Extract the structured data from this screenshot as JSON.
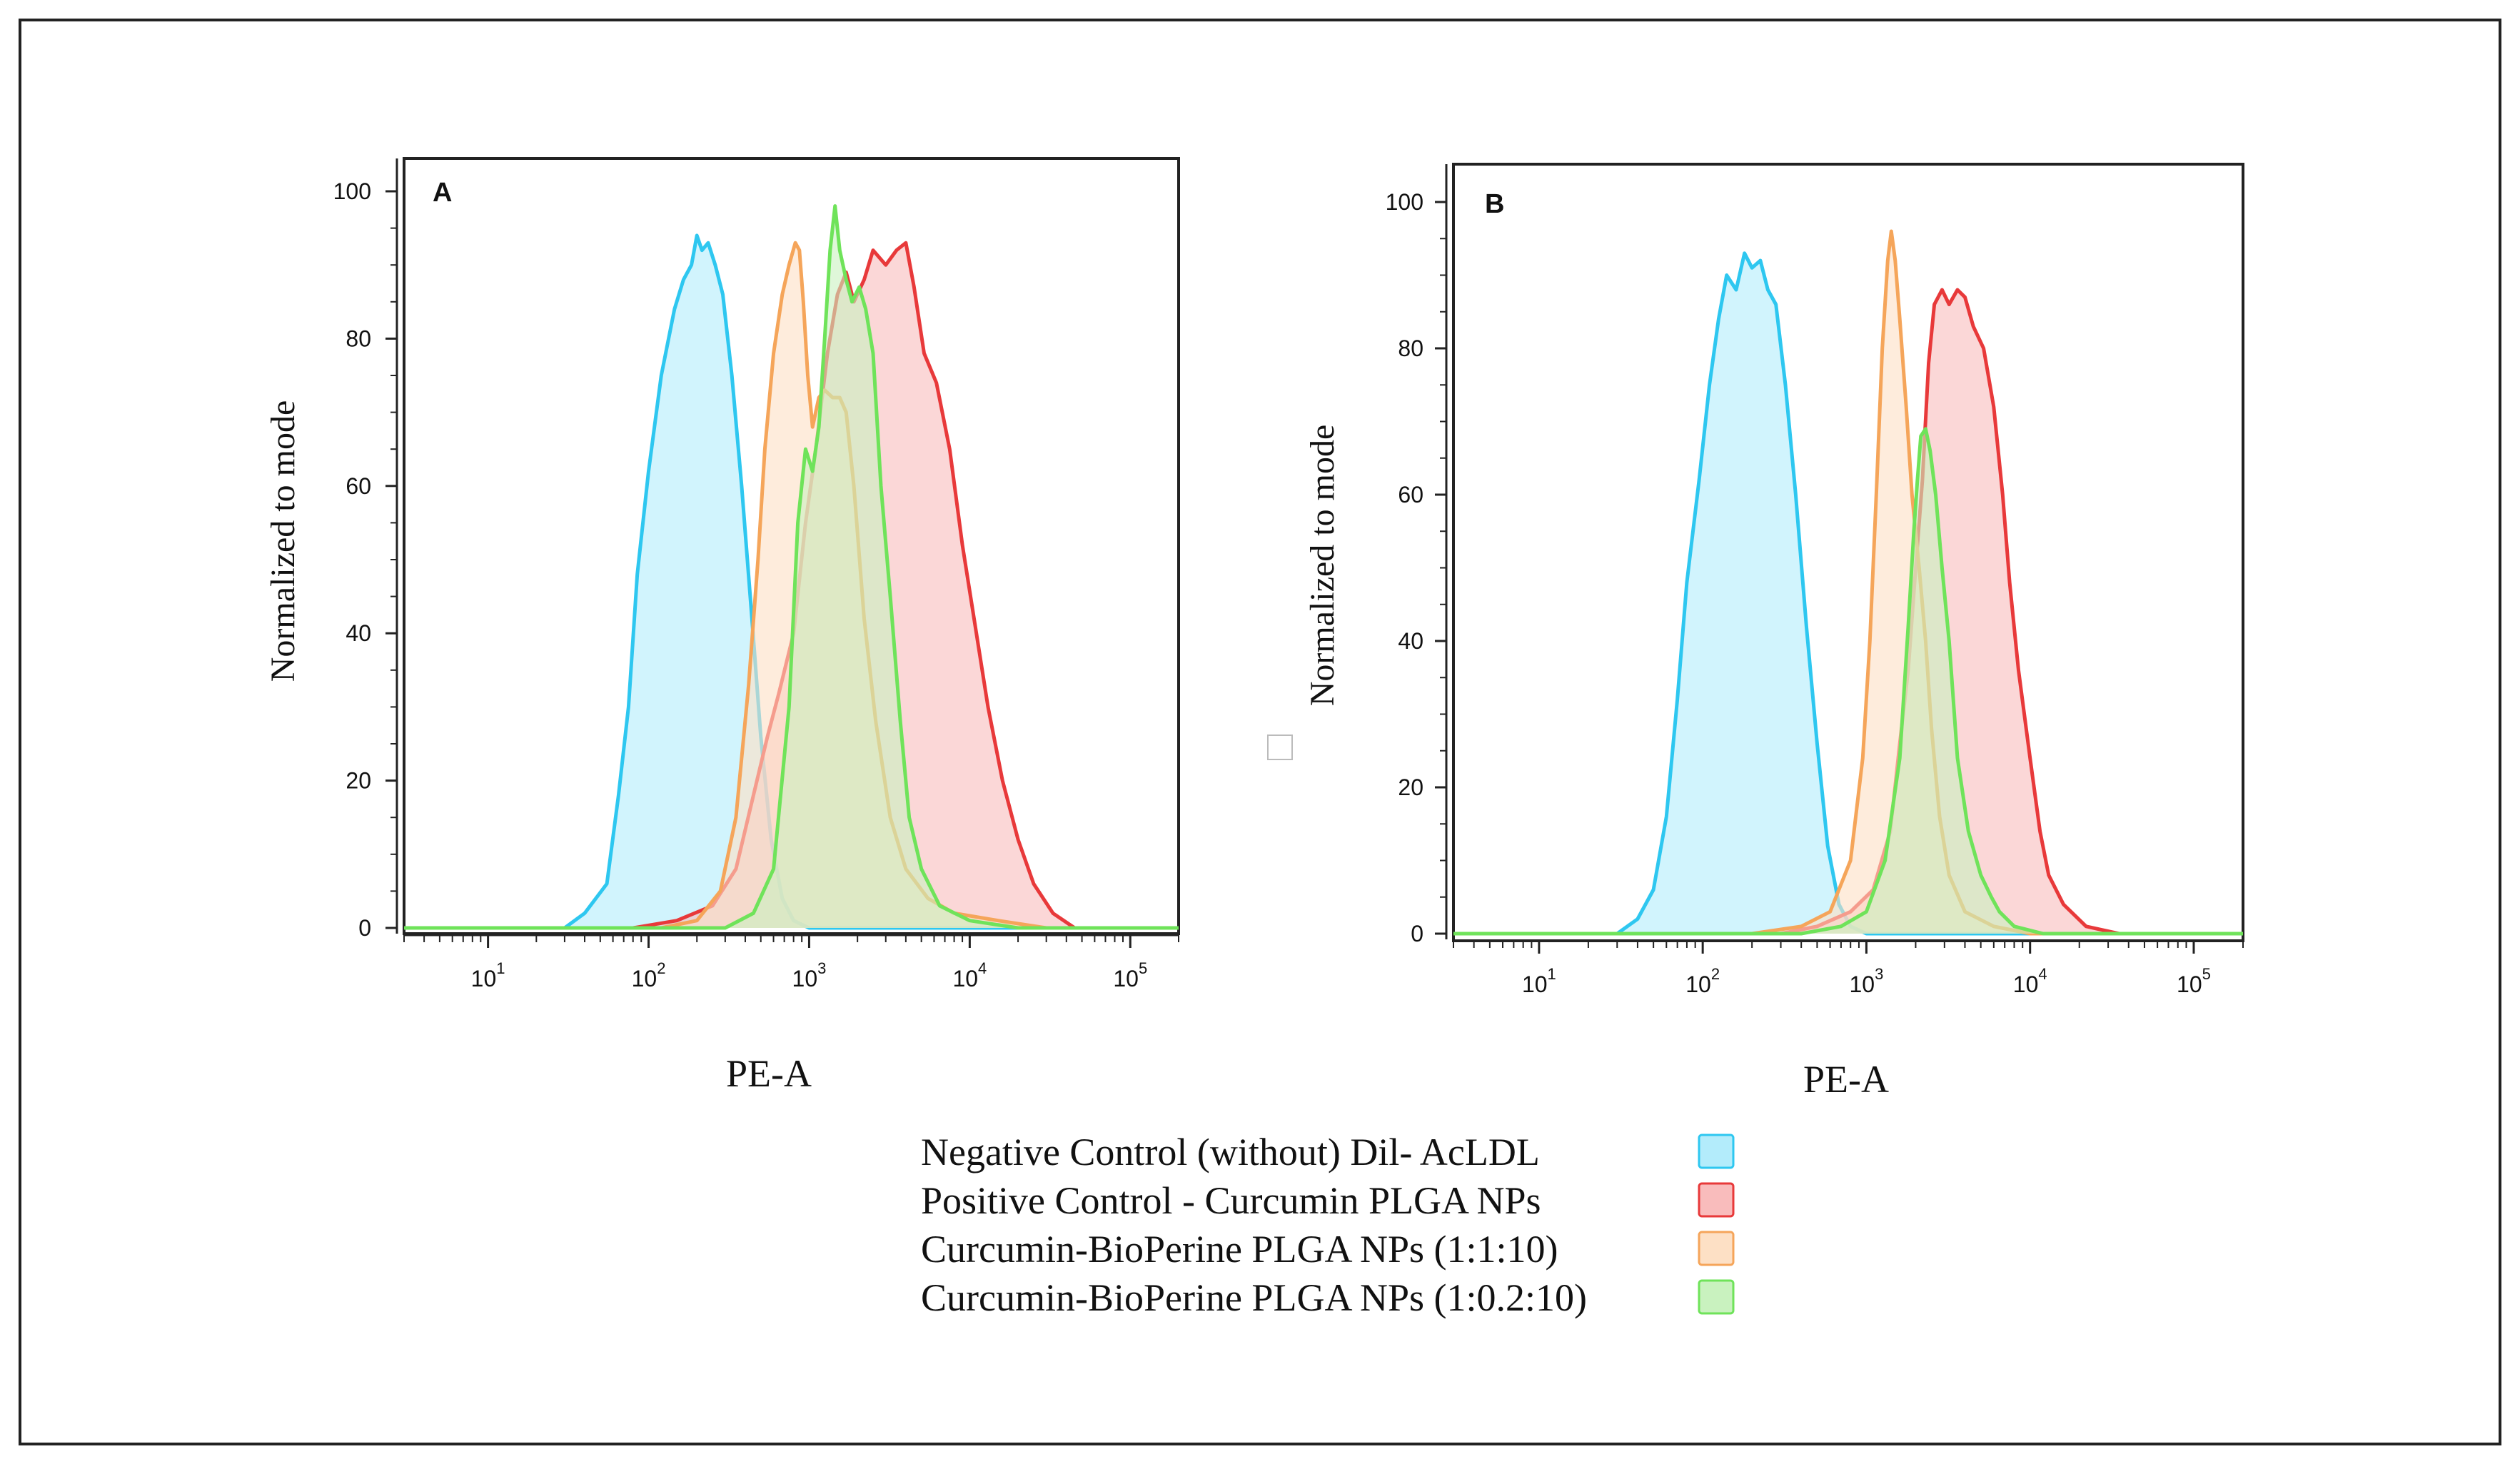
{
  "chart_data": [
    {
      "panel": "A",
      "type": "area",
      "xscale": "log",
      "xlim": [
        3,
        200000
      ],
      "ylim": [
        0,
        100
      ],
      "ylabel": "Normalized to mode",
      "xlabel": "PE-A",
      "yticks": [
        0,
        20,
        40,
        60,
        80,
        100
      ],
      "xticks": [
        {
          "base": "10",
          "exp": "1",
          "value": 10
        },
        {
          "base": "10",
          "exp": "2",
          "value": 100
        },
        {
          "base": "10",
          "exp": "3",
          "value": 1000
        },
        {
          "base": "10",
          "exp": "4",
          "value": 10000
        },
        {
          "base": "10",
          "exp": "5",
          "value": 100000
        }
      ],
      "series": [
        {
          "name": "Negative Control (without) Dil- AcLDL",
          "stroke": "#2ec7f0",
          "fill": "#b3ecfb",
          "points": [
            [
              3,
              0
            ],
            [
              30,
              0
            ],
            [
              40,
              2
            ],
            [
              55,
              6
            ],
            [
              65,
              18
            ],
            [
              75,
              30
            ],
            [
              85,
              48
            ],
            [
              100,
              62
            ],
            [
              120,
              75
            ],
            [
              145,
              84
            ],
            [
              165,
              88
            ],
            [
              185,
              90
            ],
            [
              200,
              94
            ],
            [
              215,
              92
            ],
            [
              235,
              93
            ],
            [
              260,
              90
            ],
            [
              290,
              86
            ],
            [
              330,
              75
            ],
            [
              380,
              60
            ],
            [
              440,
              42
            ],
            [
              500,
              26
            ],
            [
              580,
              12
            ],
            [
              680,
              4
            ],
            [
              800,
              1
            ],
            [
              1000,
              0
            ],
            [
              200000,
              0
            ]
          ]
        },
        {
          "name": "Positive Control - Curcumin PLGA NPs",
          "stroke": "#e8393a",
          "fill": "#f9bcbc",
          "points": [
            [
              3,
              0
            ],
            [
              80,
              0
            ],
            [
              150,
              1
            ],
            [
              250,
              3
            ],
            [
              350,
              8
            ],
            [
              450,
              18
            ],
            [
              550,
              26
            ],
            [
              650,
              32
            ],
            [
              800,
              40
            ],
            [
              950,
              55
            ],
            [
              1100,
              65
            ],
            [
              1300,
              78
            ],
            [
              1500,
              86
            ],
            [
              1700,
              89
            ],
            [
              1900,
              85
            ],
            [
              2200,
              88
            ],
            [
              2500,
              92
            ],
            [
              3000,
              90
            ],
            [
              3500,
              92
            ],
            [
              4000,
              93
            ],
            [
              4500,
              87
            ],
            [
              5200,
              78
            ],
            [
              6200,
              74
            ],
            [
              7500,
              65
            ],
            [
              9000,
              52
            ],
            [
              11000,
              40
            ],
            [
              13000,
              30
            ],
            [
              16000,
              20
            ],
            [
              20000,
              12
            ],
            [
              25000,
              6
            ],
            [
              33000,
              2
            ],
            [
              45000,
              0
            ],
            [
              200000,
              0
            ]
          ]
        },
        {
          "name": "Curcumin-BioPerine PLGA NPs (1:1:10)",
          "stroke": "#f5a55a",
          "fill": "#fde0c5",
          "points": [
            [
              3,
              0
            ],
            [
              120,
              0
            ],
            [
              200,
              1
            ],
            [
              280,
              5
            ],
            [
              350,
              15
            ],
            [
              420,
              33
            ],
            [
              480,
              50
            ],
            [
              530,
              65
            ],
            [
              600,
              78
            ],
            [
              680,
              86
            ],
            [
              750,
              90
            ],
            [
              820,
              93
            ],
            [
              870,
              92
            ],
            [
              920,
              85
            ],
            [
              980,
              75
            ],
            [
              1050,
              68
            ],
            [
              1150,
              72
            ],
            [
              1250,
              73
            ],
            [
              1400,
              72
            ],
            [
              1550,
              72
            ],
            [
              1700,
              70
            ],
            [
              1900,
              60
            ],
            [
              2200,
              42
            ],
            [
              2600,
              28
            ],
            [
              3200,
              15
            ],
            [
              4000,
              8
            ],
            [
              5500,
              4
            ],
            [
              8000,
              2
            ],
            [
              15000,
              1
            ],
            [
              30000,
              0
            ],
            [
              200000,
              0
            ]
          ]
        },
        {
          "name": "Curcumin-BioPerine PLGA NPs (1:0.2:10)",
          "stroke": "#6fe35a",
          "fill": "#c9f2bf",
          "points": [
            [
              3,
              0
            ],
            [
              300,
              0
            ],
            [
              450,
              2
            ],
            [
              600,
              8
            ],
            [
              750,
              30
            ],
            [
              850,
              55
            ],
            [
              950,
              65
            ],
            [
              1050,
              62
            ],
            [
              1150,
              68
            ],
            [
              1250,
              80
            ],
            [
              1350,
              92
            ],
            [
              1450,
              98
            ],
            [
              1550,
              92
            ],
            [
              1700,
              88
            ],
            [
              1850,
              85
            ],
            [
              2050,
              87
            ],
            [
              2250,
              84
            ],
            [
              2500,
              78
            ],
            [
              2800,
              60
            ],
            [
              3200,
              45
            ],
            [
              3700,
              28
            ],
            [
              4200,
              15
            ],
            [
              5000,
              8
            ],
            [
              6500,
              3
            ],
            [
              10000,
              1
            ],
            [
              20000,
              0
            ],
            [
              200000,
              0
            ]
          ]
        }
      ]
    },
    {
      "panel": "B",
      "type": "area",
      "xscale": "log",
      "xlim": [
        3,
        200000
      ],
      "ylim": [
        0,
        100
      ],
      "ylabel": "Normalized to mode",
      "xlabel": "PE-A",
      "yticks": [
        0,
        20,
        40,
        60,
        80,
        100
      ],
      "xticks": [
        {
          "base": "10",
          "exp": "1",
          "value": 10
        },
        {
          "base": "10",
          "exp": "2",
          "value": 100
        },
        {
          "base": "10",
          "exp": "3",
          "value": 1000
        },
        {
          "base": "10",
          "exp": "4",
          "value": 10000
        },
        {
          "base": "10",
          "exp": "5",
          "value": 100000
        }
      ],
      "series": [
        {
          "name": "Negative Control (without) Dil- AcLDL",
          "stroke": "#2ec7f0",
          "fill": "#b3ecfb",
          "points": [
            [
              3,
              0
            ],
            [
              30,
              0
            ],
            [
              40,
              2
            ],
            [
              50,
              6
            ],
            [
              60,
              16
            ],
            [
              70,
              32
            ],
            [
              80,
              48
            ],
            [
              95,
              62
            ],
            [
              110,
              75
            ],
            [
              125,
              84
            ],
            [
              140,
              90
            ],
            [
              160,
              88
            ],
            [
              180,
              93
            ],
            [
              200,
              91
            ],
            [
              225,
              92
            ],
            [
              250,
              88
            ],
            [
              280,
              86
            ],
            [
              320,
              75
            ],
            [
              370,
              60
            ],
            [
              430,
              42
            ],
            [
              500,
              26
            ],
            [
              580,
              12
            ],
            [
              680,
              4
            ],
            [
              800,
              1
            ],
            [
              1000,
              0
            ],
            [
              200000,
              0
            ]
          ]
        },
        {
          "name": "Positive Control - Curcumin PLGA NPs",
          "stroke": "#e8393a",
          "fill": "#f9bcbc",
          "points": [
            [
              3,
              0
            ],
            [
              300,
              0
            ],
            [
              500,
              1
            ],
            [
              800,
              3
            ],
            [
              1100,
              6
            ],
            [
              1400,
              14
            ],
            [
              1600,
              26
            ],
            [
              1800,
              36
            ],
            [
              2000,
              50
            ],
            [
              2200,
              62
            ],
            [
              2400,
              78
            ],
            [
              2600,
              86
            ],
            [
              2900,
              88
            ],
            [
              3200,
              86
            ],
            [
              3600,
              88
            ],
            [
              4000,
              87
            ],
            [
              4500,
              83
            ],
            [
              5200,
              80
            ],
            [
              6000,
              72
            ],
            [
              6800,
              60
            ],
            [
              7500,
              48
            ],
            [
              8500,
              36
            ],
            [
              10000,
              24
            ],
            [
              11500,
              14
            ],
            [
              13000,
              8
            ],
            [
              16000,
              4
            ],
            [
              22000,
              1
            ],
            [
              35000,
              0
            ],
            [
              200000,
              0
            ]
          ]
        },
        {
          "name": "Curcumin-BioPerine PLGA NPs (1:1:10)",
          "stroke": "#f5a55a",
          "fill": "#fde0c5",
          "points": [
            [
              3,
              0
            ],
            [
              200,
              0
            ],
            [
              400,
              1
            ],
            [
              600,
              3
            ],
            [
              800,
              10
            ],
            [
              950,
              24
            ],
            [
              1050,
              40
            ],
            [
              1150,
              60
            ],
            [
              1250,
              80
            ],
            [
              1350,
              92
            ],
            [
              1420,
              96
            ],
            [
              1500,
              92
            ],
            [
              1600,
              84
            ],
            [
              1750,
              72
            ],
            [
              1900,
              60
            ],
            [
              2100,
              50
            ],
            [
              2300,
              40
            ],
            [
              2500,
              28
            ],
            [
              2800,
              16
            ],
            [
              3200,
              8
            ],
            [
              4000,
              3
            ],
            [
              6000,
              1
            ],
            [
              10000,
              0
            ],
            [
              200000,
              0
            ]
          ]
        },
        {
          "name": "Curcumin-BioPerine PLGA NPs (1:0.2:10)",
          "stroke": "#6fe35a",
          "fill": "#c9f2bf",
          "points": [
            [
              3,
              0
            ],
            [
              400,
              0
            ],
            [
              700,
              1
            ],
            [
              1000,
              3
            ],
            [
              1300,
              10
            ],
            [
              1600,
              24
            ],
            [
              1800,
              42
            ],
            [
              1950,
              55
            ],
            [
              2050,
              62
            ],
            [
              2150,
              68
            ],
            [
              2300,
              69
            ],
            [
              2450,
              66
            ],
            [
              2650,
              60
            ],
            [
              2900,
              50
            ],
            [
              3200,
              40
            ],
            [
              3600,
              24
            ],
            [
              4200,
              14
            ],
            [
              5000,
              8
            ],
            [
              5800,
              5
            ],
            [
              6500,
              3
            ],
            [
              8000,
              1
            ],
            [
              12000,
              0
            ],
            [
              200000,
              0
            ]
          ]
        }
      ]
    }
  ],
  "panels": {
    "a": {
      "letter": "A",
      "ylabel": "Normalized to mode",
      "xlabel": "PE-A"
    },
    "b": {
      "letter": "B",
      "ylabel": "Normalized to mode",
      "xlabel": "PE-A"
    }
  },
  "legend": {
    "items": [
      {
        "label": "Negative Control (without) Dil- AcLDL",
        "stroke": "#2ec7f0",
        "fill": "#b3ecfb"
      },
      {
        "label": "Positive Control - Curcumin PLGA NPs",
        "stroke": "#e8393a",
        "fill": "#f9bcbc"
      },
      {
        "label": "Curcumin-BioPerine PLGA NPs (1:1:10)",
        "stroke": "#f5a55a",
        "fill": "#fde0c5"
      },
      {
        "label": "Curcumin-BioPerine PLGA NPs (1:0.2:10)",
        "stroke": "#6fe35a",
        "fill": "#c9f2bf"
      }
    ]
  }
}
